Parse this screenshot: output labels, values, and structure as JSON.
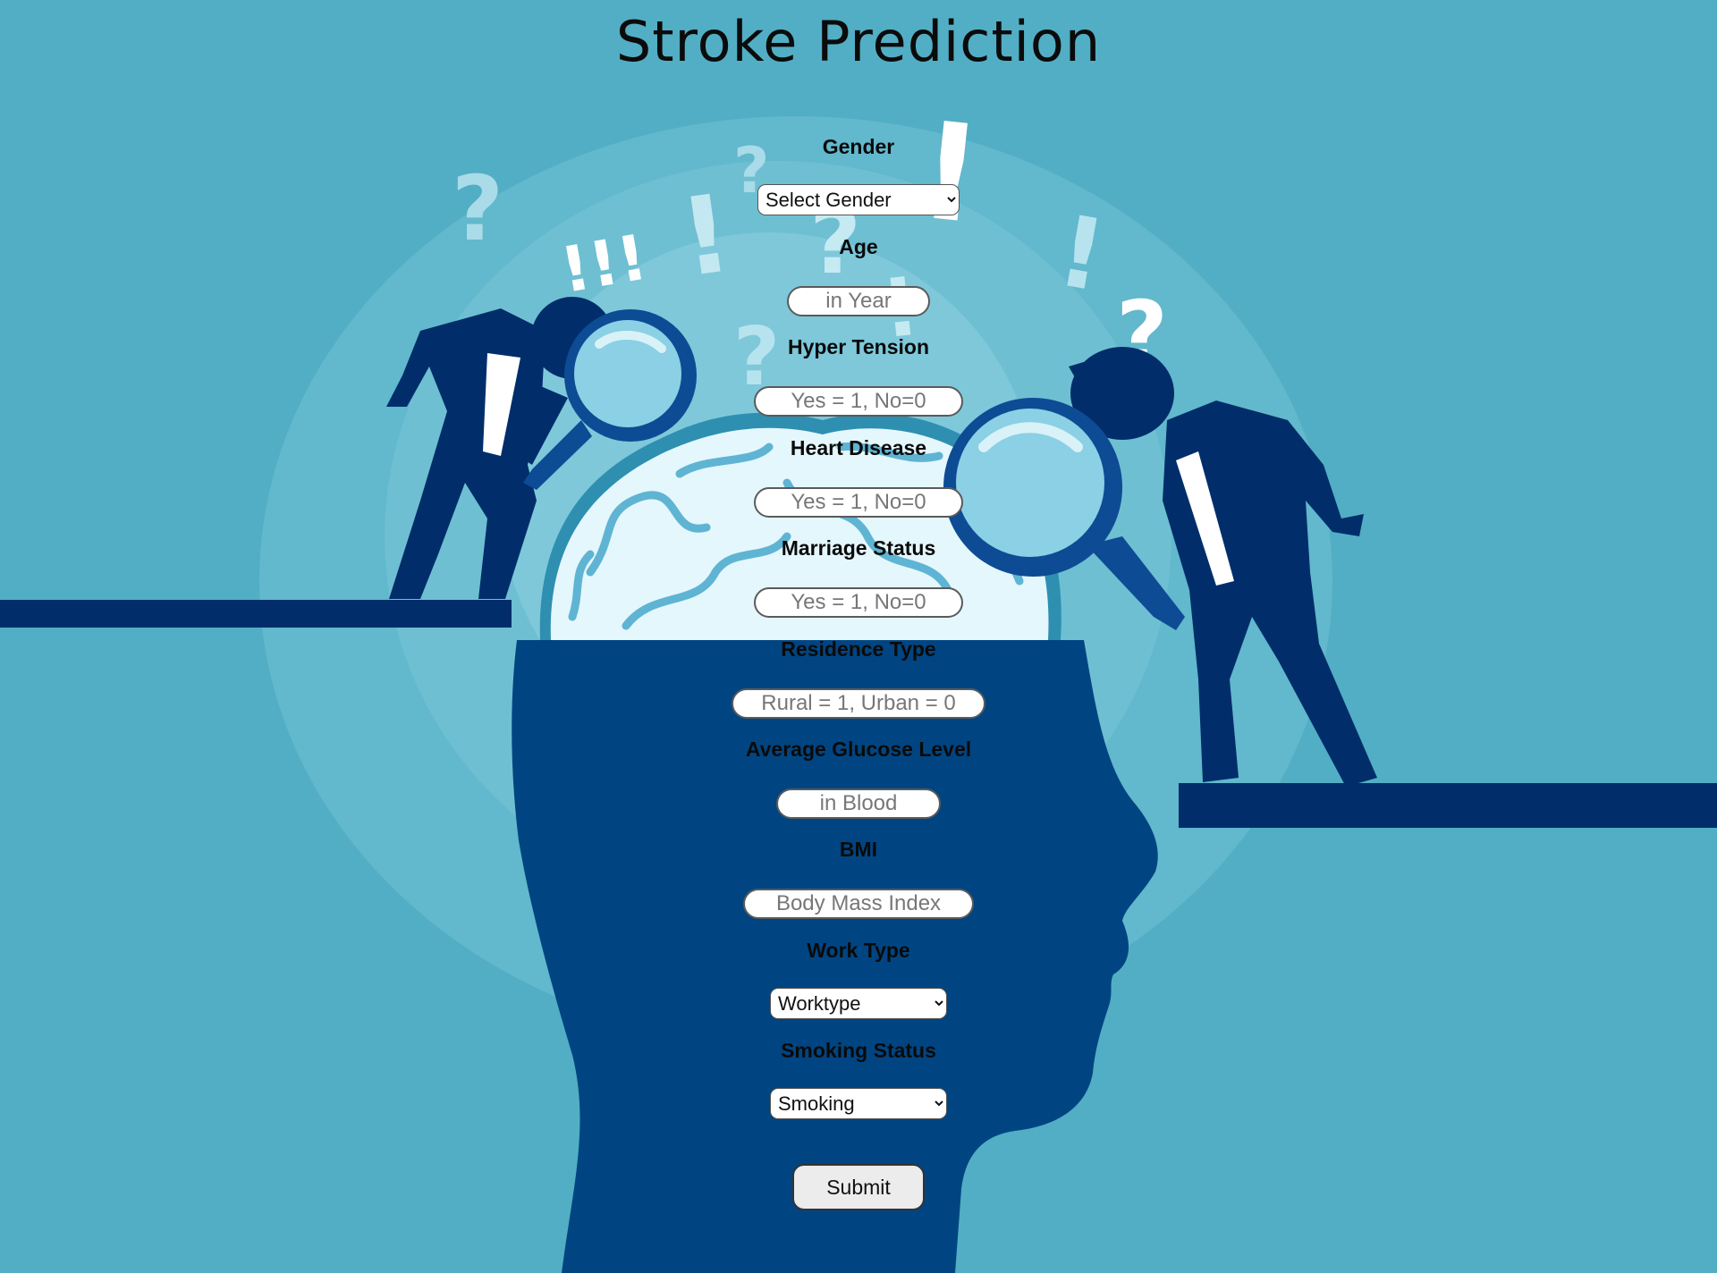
{
  "page": {
    "title": "Stroke Prediction"
  },
  "colors": {
    "background": "#52aec4",
    "head_silhouette": "#004582",
    "figure_dark": "#012e6b",
    "brain_light": "#e4f7fc",
    "brain_mid": "#9edbee",
    "halo": "#7cc6d8"
  },
  "icons": {
    "question_mark": "?",
    "exclamation_mark": "!",
    "triple_exclamation": "!!!"
  },
  "form": {
    "gender": {
      "label": "Gender",
      "selected": "Select Gender"
    },
    "age": {
      "label": "Age",
      "placeholder": "in Year"
    },
    "hypertension": {
      "label": "Hyper Tension",
      "placeholder": "Yes = 1, No=0"
    },
    "heart_disease": {
      "label": "Heart Disease",
      "placeholder": "Yes = 1, No=0"
    },
    "marriage_status": {
      "label": "Marriage Status",
      "placeholder": "Yes = 1, No=0"
    },
    "residence_type": {
      "label": "Residence Type",
      "placeholder": "Rural = 1, Urban = 0"
    },
    "avg_glucose": {
      "label": "Average Glucose Level",
      "placeholder": "in Blood"
    },
    "bmi": {
      "label": "BMI",
      "placeholder": "Body Mass Index"
    },
    "work_type": {
      "label": "Work Type",
      "selected": "Worktype"
    },
    "smoking_status": {
      "label": "Smoking Status",
      "selected": "Smoking"
    },
    "submit_label": "Submit"
  }
}
